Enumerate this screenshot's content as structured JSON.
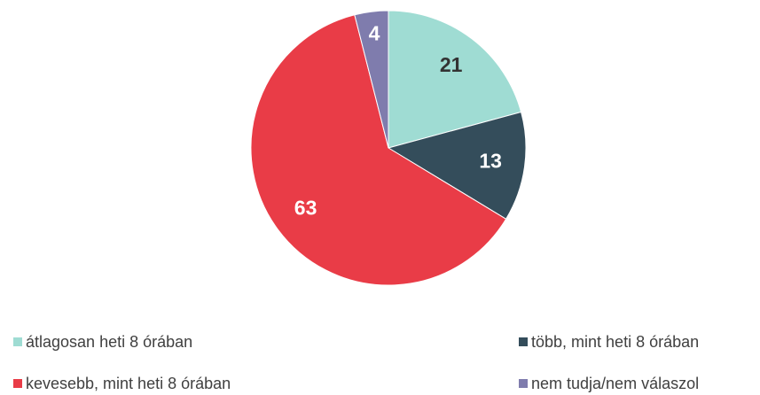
{
  "chart_data": {
    "type": "pie",
    "categories": [
      "átlagosan heti 8 órában",
      "több, mint heti 8 órában",
      "kevesebb, mint heti 8 órában",
      "nem tudja/nem válaszol"
    ],
    "values": [
      21,
      13,
      63,
      4
    ],
    "colors": [
      "#9fdcd3",
      "#344d5b",
      "#e93c47",
      "#7f7cad"
    ],
    "legend": "bottom"
  }
}
